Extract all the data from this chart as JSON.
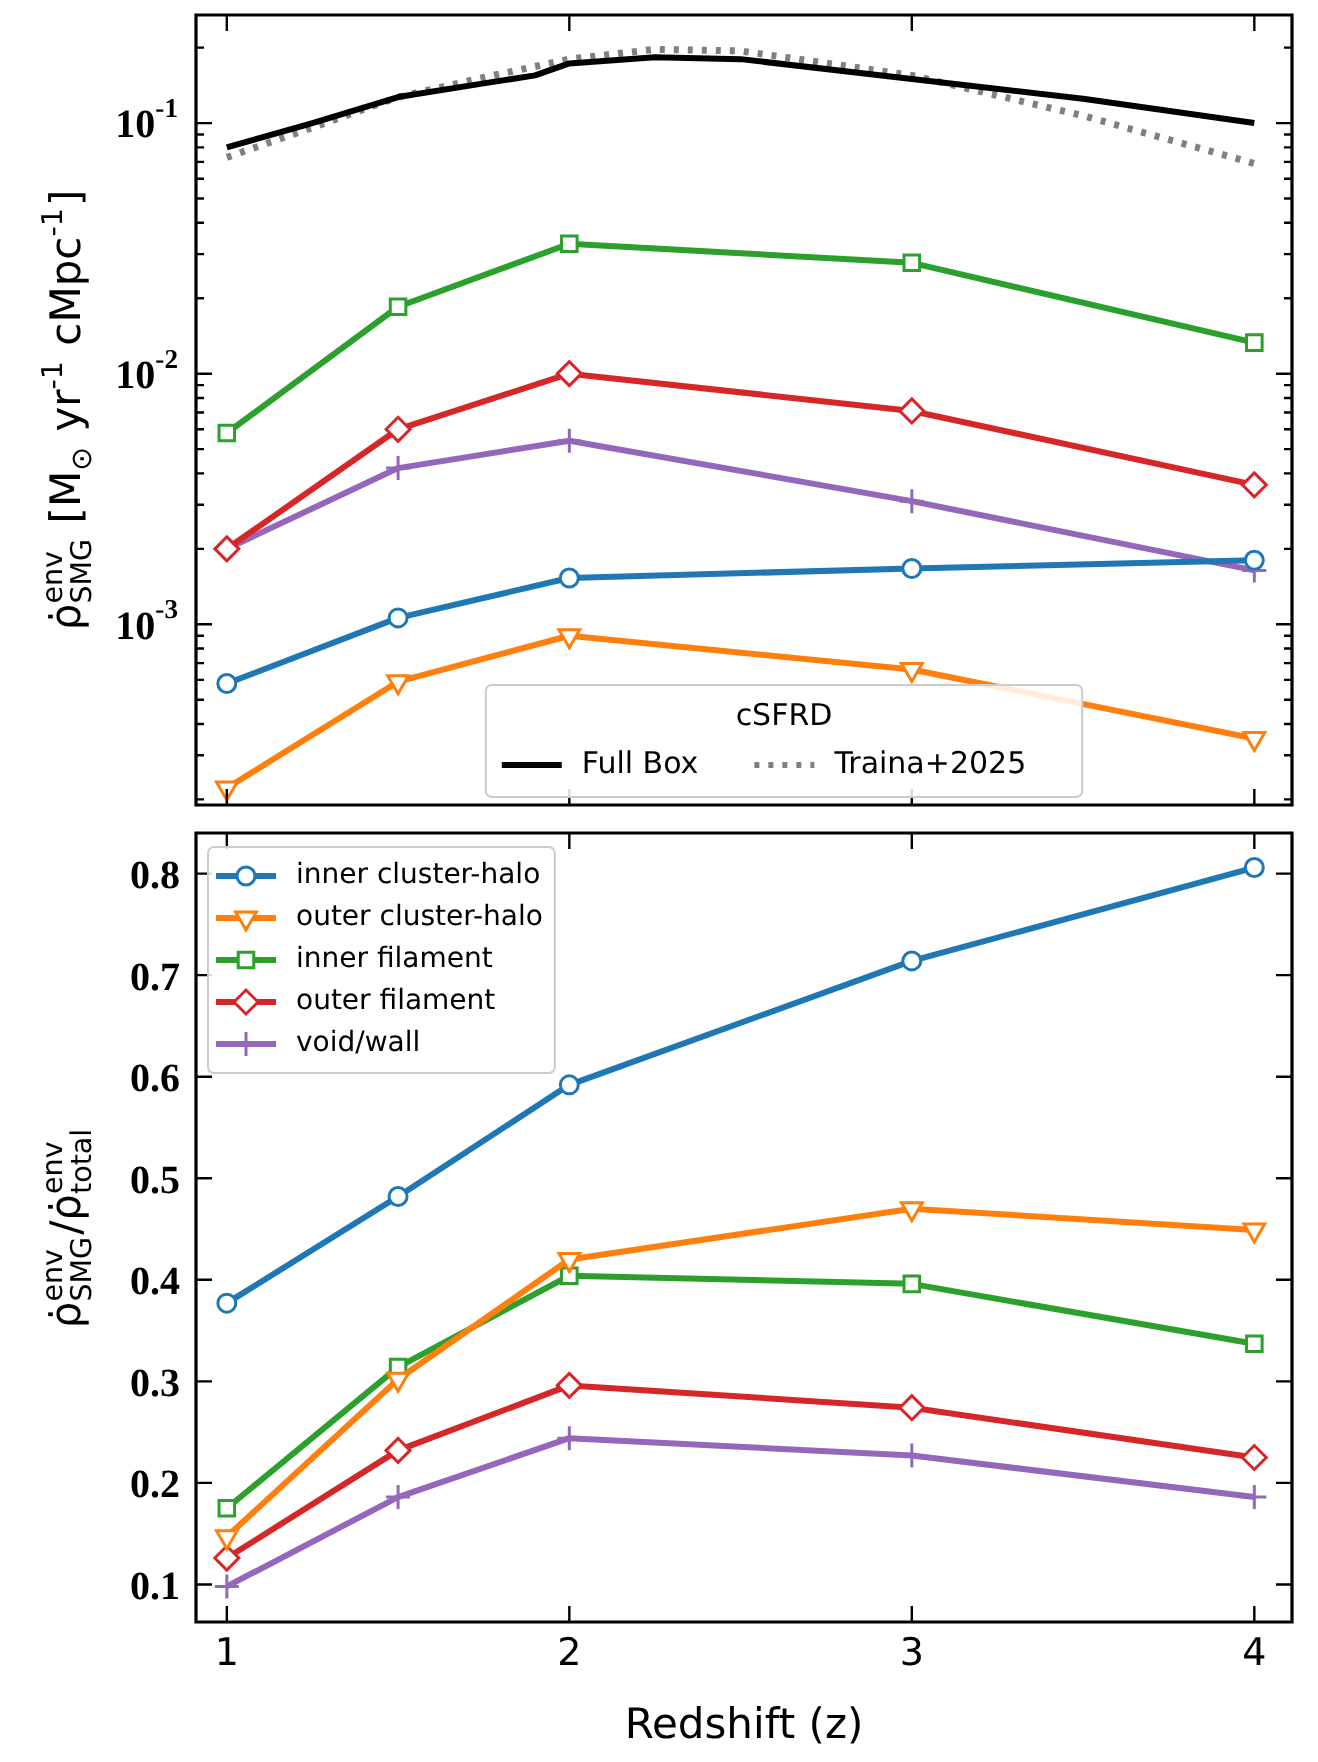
{
  "chart_data": [
    {
      "type": "line",
      "ylabel": "ρ̇$^{env}$$_{SMG}$ [M$_{⊙}$ yr$^{-1}$ cMpc$^{-1}$]",
      "legend_title": "cSFRD",
      "legend": "bottom",
      "log": "y",
      "tick_labels": "y",
      "xlim": [
        0.91,
        4.11
      ],
      "xticks": [
        1,
        2,
        3,
        4
      ],
      "ylim": [
        0.00019,
        0.27
      ],
      "yticks": [
        {
          "value": 0.0002,
          "label": null
        },
        {
          "value": 0.0003,
          "label": null
        },
        {
          "value": 0.0004,
          "label": null
        },
        {
          "value": 0.0005,
          "label": null
        },
        {
          "value": 0.0006,
          "label": null
        },
        {
          "value": 0.0007,
          "label": null
        },
        {
          "value": 0.0008,
          "label": null
        },
        {
          "value": 0.0009,
          "label": null
        },
        {
          "value": 0.001,
          "label": "10$^{-3}$"
        },
        {
          "value": 0.002,
          "label": null
        },
        {
          "value": 0.003,
          "label": null
        },
        {
          "value": 0.004,
          "label": null
        },
        {
          "value": 0.005,
          "label": null
        },
        {
          "value": 0.006,
          "label": null
        },
        {
          "value": 0.007,
          "label": null
        },
        {
          "value": 0.008,
          "label": null
        },
        {
          "value": 0.009,
          "label": null
        },
        {
          "value": 0.01,
          "label": "10$^{-2}$"
        },
        {
          "value": 0.02,
          "label": null
        },
        {
          "value": 0.03,
          "label": null
        },
        {
          "value": 0.04,
          "label": null
        },
        {
          "value": 0.05,
          "label": null
        },
        {
          "value": 0.06,
          "label": null
        },
        {
          "value": 0.07,
          "label": null
        },
        {
          "value": 0.08,
          "label": null
        },
        {
          "value": 0.09,
          "label": null
        },
        {
          "value": 0.1,
          "label": "10$^{-1}$"
        },
        {
          "value": 0.2,
          "label": null
        }
      ],
      "x": [
        1,
        1.5,
        2,
        3,
        4
      ],
      "series": [
        {
          "color": "#1f77b4",
          "marker": "circle",
          "values": [
            0.00058,
            0.00106,
            0.00153,
            0.00167,
            0.0018
          ]
        },
        {
          "color": "#ff7f0e",
          "marker": "triangle",
          "values": [
            0.000222,
            0.00059,
            0.0009,
            0.00066,
            0.00035
          ]
        },
        {
          "color": "#2ca02c",
          "marker": "square",
          "values": [
            0.0058,
            0.0185,
            0.033,
            0.0277,
            0.0133
          ]
        },
        {
          "color": "#d62728",
          "marker": "diamond",
          "values": [
            0.002,
            0.006,
            0.01,
            0.0071,
            0.0036
          ]
        },
        {
          "color": "#9467bd",
          "marker": "cross",
          "values": [
            0.002,
            0.0042,
            0.0054,
            0.0031,
            0.00164
          ]
        },
        {
          "name": "Full Box",
          "color": "#000000",
          "marker": "none",
          "line_style": "solid",
          "x": [
            1,
            1.25,
            1.5,
            1.75,
            1.9,
            2,
            2.25,
            2.5,
            3,
            3.5,
            4
          ],
          "values": [
            0.08,
            0.1,
            0.127,
            0.144,
            0.155,
            0.173,
            0.183,
            0.18,
            0.15,
            0.125,
            0.1
          ]
        },
        {
          "name": "Traina+2025",
          "color": "#808080",
          "marker": "none",
          "line_style": "dotted",
          "x": [
            1,
            1.25,
            1.5,
            1.75,
            2,
            2.25,
            2.5,
            3,
            3.5,
            4
          ],
          "values": [
            0.073,
            0.096,
            0.127,
            0.152,
            0.18,
            0.197,
            0.194,
            0.155,
            0.107,
            0.069
          ]
        }
      ]
    },
    {
      "type": "line",
      "xlabel": "Redshift (z)",
      "ylabel": "ρ̇$^{env}$$_{SMG}$/ρ̇$^{env}$$_{total}$",
      "legend": "top left",
      "xlim": [
        0.91,
        4.11
      ],
      "xticks": [
        1,
        2,
        3,
        4
      ],
      "ylim": [
        0.063,
        0.84
      ],
      "yticks": [
        0.1,
        0.2,
        0.3,
        0.4,
        0.5,
        0.6,
        0.7,
        0.8
      ],
      "x": [
        1,
        1.5,
        2,
        3,
        4
      ],
      "series": [
        {
          "name": "inner cluster-halo",
          "color": "#1f77b4",
          "marker": "circle",
          "values": [
            0.377,
            0.482,
            0.592,
            0.714,
            0.806
          ]
        },
        {
          "name": "outer cluster-halo",
          "color": "#ff7f0e",
          "marker": "triangle",
          "values": [
            0.147,
            0.302,
            0.42,
            0.47,
            0.449
          ]
        },
        {
          "name": "inner filament",
          "color": "#2ca02c",
          "marker": "square",
          "values": [
            0.175,
            0.314,
            0.404,
            0.396,
            0.337
          ]
        },
        {
          "name": "outer filament",
          "color": "#d62728",
          "marker": "diamond",
          "values": [
            0.126,
            0.232,
            0.296,
            0.274,
            0.225
          ]
        },
        {
          "name": "void/wall",
          "color": "#9467bd",
          "marker": "cross",
          "values": [
            0.098,
            0.186,
            0.244,
            0.227,
            0.186
          ]
        }
      ]
    }
  ]
}
